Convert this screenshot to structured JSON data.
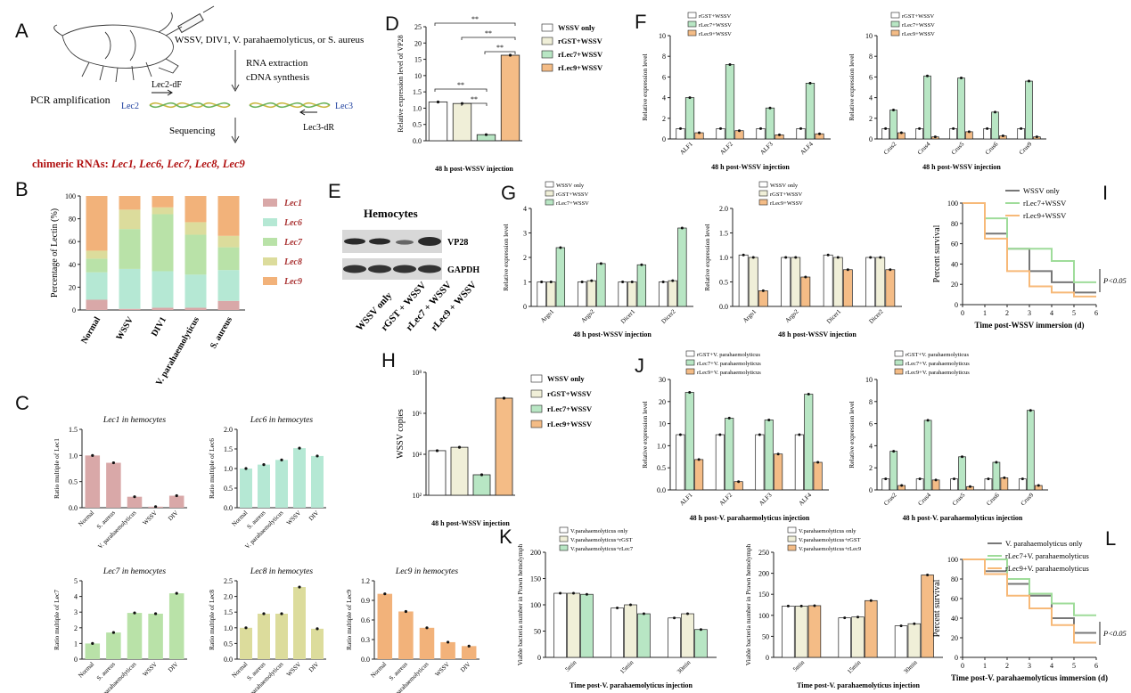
{
  "panels": {
    "A": {
      "letter": "A",
      "challenge": "WSSV, DIV1, V. parahaemolyticus, or S. aureus",
      "step1": "RNA extraction",
      "step2": "cDNA synthesis",
      "pcr": "PCR amplification",
      "lec2": "Lec2",
      "lec2_primer": "Lec2-dF",
      "lec3": "Lec3",
      "lec3_primer": "Lec3-dR",
      "sequencing": "Sequencing",
      "chimeric_prefix": "chimeric RNAs:",
      "chimeric_list": "Lec1, Lec6, Lec7, Lec8, Lec9",
      "chimeric_color": "#b01010"
    },
    "B": {
      "letter": "B"
    },
    "C": {
      "letter": "C"
    },
    "D": {
      "letter": "D"
    },
    "E": {
      "letter": "E",
      "title": "Hemocytes",
      "band1": "VP28",
      "band2": "GAPDH",
      "lanes": [
        "WSSV only",
        "rGST + WSSV",
        "rLec7 + WSSV",
        "rLec9 + WSSV"
      ]
    },
    "F": {
      "letter": "F"
    },
    "G": {
      "letter": "G"
    },
    "H": {
      "letter": "H"
    },
    "I": {
      "letter": "I"
    },
    "J": {
      "letter": "J"
    },
    "K": {
      "letter": "K"
    },
    "L": {
      "letter": "L"
    }
  },
  "colors": {
    "white": "#ffffff",
    "cream": "#f0efd8",
    "green": "#b8e6c4",
    "orange": "#f4bc86",
    "pink": "#d9a8a8",
    "mint": "#b5e8d4",
    "lime": "#b9e2a8",
    "khaki": "#dcdc9c",
    "peach": "#f2b27a",
    "grey_line": "#777777",
    "green_line": "#9fdc9a",
    "orange_line": "#f7b978"
  },
  "chart_data": [
    {
      "id": "B",
      "type": "bar",
      "stacked": true,
      "categories": [
        "Normal",
        "WSSV",
        "DIV1",
        "V. parahaemolyticus",
        "S. aureus"
      ],
      "ylabel": "Percentage of Lectin (%)",
      "ylim": [
        0,
        100
      ],
      "yticks": [
        "0",
        "20",
        "40",
        "60",
        "80",
        "100"
      ],
      "series": [
        {
          "name": "Lec1",
          "values": [
            9,
            1,
            2,
            2,
            8
          ]
        },
        {
          "name": "Lec6",
          "values": [
            24,
            35,
            32,
            29,
            27
          ]
        },
        {
          "name": "Lec7",
          "values": [
            12,
            35,
            50,
            35,
            20
          ]
        },
        {
          "name": "Lec8",
          "values": [
            7,
            17,
            6,
            11,
            10
          ]
        },
        {
          "name": "Lec9",
          "values": [
            48,
            12,
            10,
            23,
            35
          ]
        }
      ]
    },
    {
      "id": "C1",
      "type": "bar",
      "title": "Lec1 in hemocytes",
      "ylabel": "Ratio multiple of Lec1",
      "categories": [
        "Normal",
        "S. aureus",
        "V. parahaemolyticus",
        "WSSV",
        "DIV"
      ],
      "values": [
        1.0,
        0.86,
        0.21,
        0.02,
        0.23
      ],
      "ylim": [
        0,
        1.5
      ],
      "yticks": [
        "0.0",
        "0.5",
        "1.0",
        "1.5"
      ]
    },
    {
      "id": "C2",
      "type": "bar",
      "title": "Lec6 in hemocytes",
      "ylabel": "Ratio multiple of Lec6",
      "categories": [
        "Normal",
        "S. aureus",
        "V. parahaemolyticus",
        "WSSV",
        "DIV"
      ],
      "values": [
        1.0,
        1.1,
        1.22,
        1.52,
        1.32
      ],
      "ylim": [
        0,
        2.0
      ],
      "yticks": [
        "0.0",
        "0.5",
        "1.0",
        "1.5",
        "2.0"
      ]
    },
    {
      "id": "C3",
      "type": "bar",
      "title": "Lec7 in hemocytes",
      "ylabel": "Ratio multiple of Lec7",
      "categories": [
        "Normal",
        "S. aureus",
        "V. parahaemolyticus",
        "WSSV",
        "DIV"
      ],
      "values": [
        1.0,
        1.7,
        2.95,
        2.9,
        4.2
      ],
      "ylim": [
        0,
        5
      ],
      "yticks": [
        "0",
        "1",
        "2",
        "3",
        "4",
        "5"
      ]
    },
    {
      "id": "C4",
      "type": "bar",
      "title": "Lec8 in hemocytes",
      "ylabel": "Ratio multiple of Lec8",
      "categories": [
        "Normal",
        "S. aureus",
        "V. parahaemolyticus",
        "WSSV",
        "DIV"
      ],
      "values": [
        1.0,
        1.45,
        1.45,
        2.3,
        0.97
      ],
      "ylim": [
        0,
        2.5
      ],
      "yticks": [
        "0.0",
        "0.5",
        "1.0",
        "1.5",
        "2.0",
        "2.5"
      ]
    },
    {
      "id": "C5",
      "type": "bar",
      "title": "Lec9 in hemocytes",
      "ylabel": "Ratio multiple of Lec9",
      "categories": [
        "Normal",
        "S. aureus",
        "V. parahaemolyticus",
        "WSSV",
        "DIV"
      ],
      "values": [
        1.0,
        0.73,
        0.48,
        0.26,
        0.2
      ],
      "ylim": [
        0,
        1.2
      ],
      "yticks": [
        "0.0",
        "0.3",
        "0.6",
        "0.9",
        "1.2"
      ]
    },
    {
      "id": "D",
      "type": "bar",
      "ylabel": "Relative expression level of VP28",
      "xlabel": "48 h post-WSSV injection",
      "categories": [
        "WSSV only",
        "rGST+WSSV",
        "rLec7+WSSV",
        "rLec9+WSSV"
      ],
      "values": [
        1.02,
        0.98,
        0.16,
        17.5
      ],
      "yticks": [
        "0.0",
        "0.5",
        "1.0",
        "1.5",
        "10",
        "15",
        "20",
        "25"
      ],
      "legend": [
        "WSSV only",
        "rGST+WSSV",
        "rLec7+WSSV",
        "rLec9+WSSV"
      ],
      "annotations": [
        "**",
        "**",
        "**",
        "**",
        "**"
      ]
    },
    {
      "id": "F1",
      "type": "bar",
      "ylabel": "Relative expression level",
      "xlabel": "48 h post-WSSV injection",
      "categories": [
        "ALF1",
        "ALF2",
        "ALF3",
        "ALF4"
      ],
      "legend": [
        "rGST+WSSV",
        "rLec7+WSSV",
        "rLec9+WSSV"
      ],
      "series": [
        {
          "name": "rGST+WSSV",
          "values": [
            1.0,
            1.0,
            1.0,
            1.0
          ]
        },
        {
          "name": "rLec7+WSSV",
          "values": [
            4.0,
            7.2,
            3.0,
            5.4
          ]
        },
        {
          "name": "rLec9+WSSV",
          "values": [
            0.6,
            0.8,
            0.4,
            0.5
          ]
        }
      ],
      "ylim": [
        0,
        10
      ],
      "yticks": [
        "0",
        "2",
        "4",
        "6",
        "8",
        "10"
      ]
    },
    {
      "id": "F2",
      "type": "bar",
      "ylabel": "Relative expression level",
      "xlabel": "48 h post-WSSV injection",
      "categories": [
        "Crus2",
        "Crus4",
        "Crus5",
        "Crus6",
        "Crus9"
      ],
      "legend": [
        "rGST+WSSV",
        "rLec7+WSSV",
        "rLec9+WSSV"
      ],
      "series": [
        {
          "name": "rGST+WSSV",
          "values": [
            1.0,
            1.0,
            1.0,
            1.0,
            1.0
          ]
        },
        {
          "name": "rLec7+WSSV",
          "values": [
            2.8,
            6.1,
            5.9,
            2.6,
            5.6
          ]
        },
        {
          "name": "rLec9+WSSV",
          "values": [
            0.6,
            0.2,
            0.7,
            0.3,
            0.2
          ]
        }
      ],
      "ylim": [
        0,
        10
      ],
      "yticks": [
        "0",
        "2",
        "4",
        "6",
        "8",
        "10"
      ]
    },
    {
      "id": "G1",
      "type": "bar",
      "ylabel": "Relative expression level",
      "xlabel": "48 h post-WSSV injection",
      "categories": [
        "Argo1",
        "Argo2",
        "Dicer1",
        "Dicer2"
      ],
      "legend": [
        "WSSV only",
        "rGST+WSSV",
        "rLec7+WSSV"
      ],
      "series": [
        {
          "name": "WSSV only",
          "values": [
            1.0,
            1.0,
            1.0,
            1.0
          ]
        },
        {
          "name": "rGST+WSSV",
          "values": [
            1.0,
            1.05,
            1.0,
            1.05
          ]
        },
        {
          "name": "rLec7+WSSV",
          "values": [
            2.4,
            1.75,
            1.7,
            3.2
          ]
        }
      ],
      "ylim": [
        0,
        4
      ],
      "yticks": [
        "0",
        "1",
        "2",
        "3",
        "4"
      ]
    },
    {
      "id": "G2",
      "type": "bar",
      "ylabel": "Relative expression level",
      "xlabel": "48 h post-WSSV injection",
      "categories": [
        "Argo1",
        "Argo2",
        "Dicer1",
        "Dicer2"
      ],
      "legend": [
        "WSSV only",
        "rGST+WSSV",
        "rLec9+WSSV"
      ],
      "series": [
        {
          "name": "WSSV only",
          "values": [
            1.05,
            1.0,
            1.05,
            1.0
          ]
        },
        {
          "name": "rGST+WSSV",
          "values": [
            1.0,
            1.0,
            1.0,
            1.0
          ]
        },
        {
          "name": "rLec9+WSSV",
          "values": [
            0.32,
            0.6,
            0.75,
            0.75
          ]
        }
      ],
      "ylim": [
        0,
        2.0
      ],
      "yticks": [
        "0.0",
        "0.5",
        "1.0",
        "1.5",
        "2.0"
      ]
    },
    {
      "id": "H",
      "type": "bar",
      "ylabel": "WSSV copies",
      "xlabel": "48 h post-WSSV injection",
      "yscale": "log",
      "categories": [
        "WSSV only",
        "rGST+WSSV",
        "rLec7+WSSV",
        "rLec9+WSSV"
      ],
      "values": [
        15000,
        22000,
        1000,
        5500000
      ],
      "legend": [
        "WSSV only",
        "rGST+WSSV",
        "rLec7+WSSV",
        "rLec9+WSSV"
      ],
      "yticks": [
        "10²",
        "10⁴",
        "10⁶",
        "10⁸"
      ]
    },
    {
      "id": "I",
      "type": "line",
      "ylabel": "Percent survival",
      "xlabel": "Time post-WSSV immersion (d)",
      "x": [
        0,
        1,
        2,
        3,
        4,
        5,
        6
      ],
      "series": [
        {
          "name": "WSSV only",
          "values": [
            100,
            70,
            55,
            33,
            22,
            12,
            12
          ]
        },
        {
          "name": "rLec7+WSSV",
          "values": [
            100,
            85,
            55,
            55,
            43,
            22,
            22
          ]
        },
        {
          "name": "rLec9+WSSV",
          "values": [
            100,
            65,
            33,
            18,
            12,
            8,
            8
          ]
        }
      ],
      "ylim": [
        0,
        100
      ],
      "yticks": [
        "0",
        "20",
        "40",
        "60",
        "80",
        "100"
      ],
      "xticks": [
        "0",
        "1",
        "2",
        "3",
        "4",
        "5",
        "6"
      ],
      "annotation": "P<0.05"
    },
    {
      "id": "J1",
      "type": "bar",
      "ylabel": "Relative expression level",
      "xlabel": "48 h post-V. parahaemolyticus injection",
      "categories": [
        "ALF1",
        "ALF2",
        "ALF3",
        "ALF4"
      ],
      "legend": [
        "rGST+V. parahaemolyticus",
        "rLec7+V. parahaemolyticus",
        "rLec9+V. parahaemolyticus"
      ],
      "series": [
        {
          "name": "rGST+V. parahaemolyticus",
          "values": [
            1.0,
            1.0,
            1.0,
            1.0
          ]
        },
        {
          "name": "rLec7+V. parahaemolyticus",
          "values": [
            23,
            9,
            8,
            22
          ]
        },
        {
          "name": "rLec9+V. parahaemolyticus",
          "values": [
            0.55,
            0.15,
            0.65,
            0.5
          ]
        }
      ],
      "yticks": [
        "0.0",
        "0.5",
        "1.0",
        "10",
        "20",
        "30"
      ]
    },
    {
      "id": "J2",
      "type": "bar",
      "ylabel": "Relative expression level",
      "xlabel": "48 h post-V. parahaemolyticus injection",
      "categories": [
        "Crus2",
        "Crus4",
        "Crus5",
        "Crus6",
        "Crus9"
      ],
      "legend": [
        "rGST+V. parahaemolyticus",
        "rLec7+V. parahaemolyticus",
        "rLec9+V. parahaemolyticus"
      ],
      "series": [
        {
          "name": "rGST+V. parahaemolyticus",
          "values": [
            1.0,
            1.0,
            1.0,
            1.0,
            1.0
          ]
        },
        {
          "name": "rLec7+V. parahaemolyticus",
          "values": [
            3.5,
            6.3,
            3.0,
            2.5,
            7.2
          ]
        },
        {
          "name": "rLec9+V. parahaemolyticus",
          "values": [
            0.4,
            0.9,
            0.3,
            1.1,
            0.4
          ]
        }
      ],
      "ylim": [
        0,
        10
      ],
      "yticks": [
        "0",
        "2",
        "4",
        "6",
        "8",
        "10"
      ]
    },
    {
      "id": "K1",
      "type": "bar",
      "ylabel": "Viable bacteria number in Prawn hemolymph",
      "xlabel": "Time post-V. parahaemolyticus injection",
      "categories": [
        "5min",
        "15min",
        "30min"
      ],
      "legend": [
        "V.parahaemolyticus only",
        "V.parahaemolyticus+rGST",
        "V.parahaemolyticus+rLec7"
      ],
      "series": [
        {
          "name": "V.parahaemolyticus only",
          "values": [
            122,
            94,
            75
          ]
        },
        {
          "name": "V.parahaemolyticus+rGST",
          "values": [
            122,
            100,
            83
          ]
        },
        {
          "name": "V.parahaemolyticus+rLec7",
          "values": [
            120,
            83,
            53
          ]
        }
      ],
      "ylim": [
        0,
        200
      ],
      "yticks": [
        "0",
        "50",
        "100",
        "150",
        "200"
      ]
    },
    {
      "id": "K2",
      "type": "bar",
      "ylabel": "Viable bacteria number in Prawn hemolymph",
      "xlabel": "Time post-V. parahaemolyticus injection",
      "categories": [
        "5min",
        "15min",
        "30min"
      ],
      "legend": [
        "V.parahaemolyticus only",
        "V.parahaemolyticus+rGST",
        "V.parahaemolyticus+rLec9"
      ],
      "series": [
        {
          "name": "V.parahaemolyticus only",
          "values": [
            122,
            94,
            75
          ]
        },
        {
          "name": "V.parahaemolyticus+rGST",
          "values": [
            122,
            96,
            80
          ]
        },
        {
          "name": "V.parahaemolyticus+rLec9",
          "values": [
            123,
            135,
            196
          ]
        }
      ],
      "ylim": [
        0,
        250
      ],
      "yticks": [
        "0",
        "50",
        "100",
        "150",
        "200",
        "250"
      ]
    },
    {
      "id": "L",
      "type": "line",
      "ylabel": "Percent survival",
      "xlabel": "Time post-V. parahaemolyticus immersion (d)",
      "x": [
        0,
        1,
        2,
        3,
        4,
        5,
        6
      ],
      "series": [
        {
          "name": "V. parahaemolyticus only",
          "values": [
            100,
            88,
            75,
            63,
            40,
            25,
            25
          ]
        },
        {
          "name": "rLec7+V. parahaemolyticus",
          "values": [
            100,
            100,
            80,
            65,
            55,
            43,
            43
          ]
        },
        {
          "name": "rLec9+V. parahaemolyticus",
          "values": [
            100,
            85,
            63,
            50,
            33,
            15,
            15
          ]
        }
      ],
      "ylim": [
        0,
        100
      ],
      "yticks": [
        "0",
        "20",
        "40",
        "60",
        "80",
        "100"
      ],
      "xticks": [
        "0",
        "1",
        "2",
        "3",
        "4",
        "5",
        "6"
      ],
      "annotation": "P<0.05"
    }
  ]
}
